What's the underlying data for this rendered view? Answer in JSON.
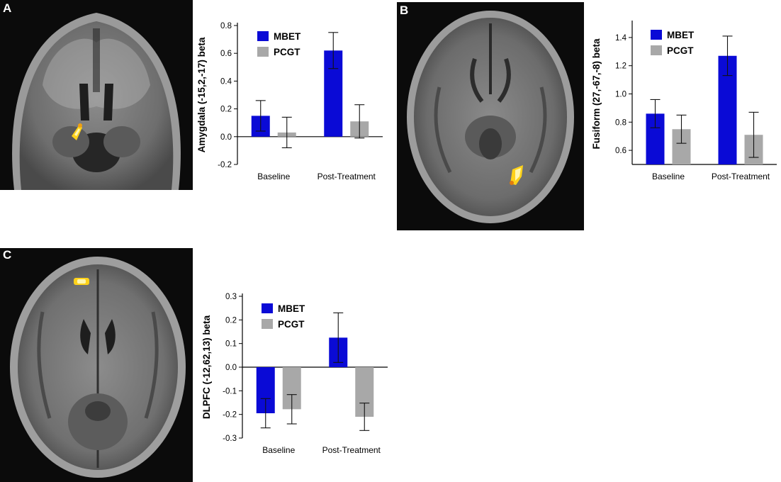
{
  "panels": [
    {
      "letter": "A"
    },
    {
      "letter": "B"
    },
    {
      "letter": "C"
    }
  ],
  "colors": {
    "series": [
      "#0a0ad6",
      "#a8a8a8"
    ],
    "activation_hot": "#ffd21a",
    "activation_core": "#fff7b0"
  },
  "chart_data": [
    {
      "type": "bar",
      "panel": "A",
      "ylabel": "Amygdala (-15,2,-17) beta",
      "categories": [
        "Baseline",
        "Post-Treatment"
      ],
      "series": [
        {
          "name": "MBET",
          "values": [
            0.15,
            0.62
          ],
          "errors": [
            0.11,
            0.13
          ]
        },
        {
          "name": "PCGT",
          "values": [
            0.03,
            0.11
          ],
          "errors": [
            0.11,
            0.12
          ]
        }
      ],
      "ylim": [
        -0.2,
        0.8
      ],
      "yticks": [
        "-0.2",
        "0.0",
        "0.2",
        "0.4",
        "0.6",
        "0.8"
      ],
      "legend": "top-left"
    },
    {
      "type": "bar",
      "panel": "B",
      "ylabel": "Fusiform (27,-67,-8) beta",
      "categories": [
        "Baseline",
        "Post-Treatment"
      ],
      "series": [
        {
          "name": "MBET",
          "values": [
            0.86,
            1.27
          ],
          "errors": [
            0.1,
            0.14
          ]
        },
        {
          "name": "PCGT",
          "values": [
            0.75,
            0.71
          ],
          "errors": [
            0.1,
            0.16
          ]
        }
      ],
      "ylim": [
        0.5,
        1.5
      ],
      "yticks": [
        "0.6",
        "0.8",
        "1.0",
        "1.2",
        "1.4"
      ],
      "legend": "top-left"
    },
    {
      "type": "bar",
      "panel": "C",
      "ylabel": "DLPFC (-12,62,13) beta",
      "categories": [
        "Baseline",
        "Post-Treatment"
      ],
      "series": [
        {
          "name": "MBET",
          "values": [
            -0.195,
            0.125
          ],
          "errors": [
            0.062,
            0.105
          ]
        },
        {
          "name": "PCGT",
          "values": [
            -0.178,
            -0.21
          ],
          "errors": [
            0.062,
            0.058
          ]
        }
      ],
      "ylim": [
        -0.3,
        0.3
      ],
      "yticks": [
        "-0.3",
        "-0.2",
        "-0.1",
        "0.0",
        "0.1",
        "0.2",
        "0.3"
      ],
      "legend": "top-left"
    }
  ]
}
